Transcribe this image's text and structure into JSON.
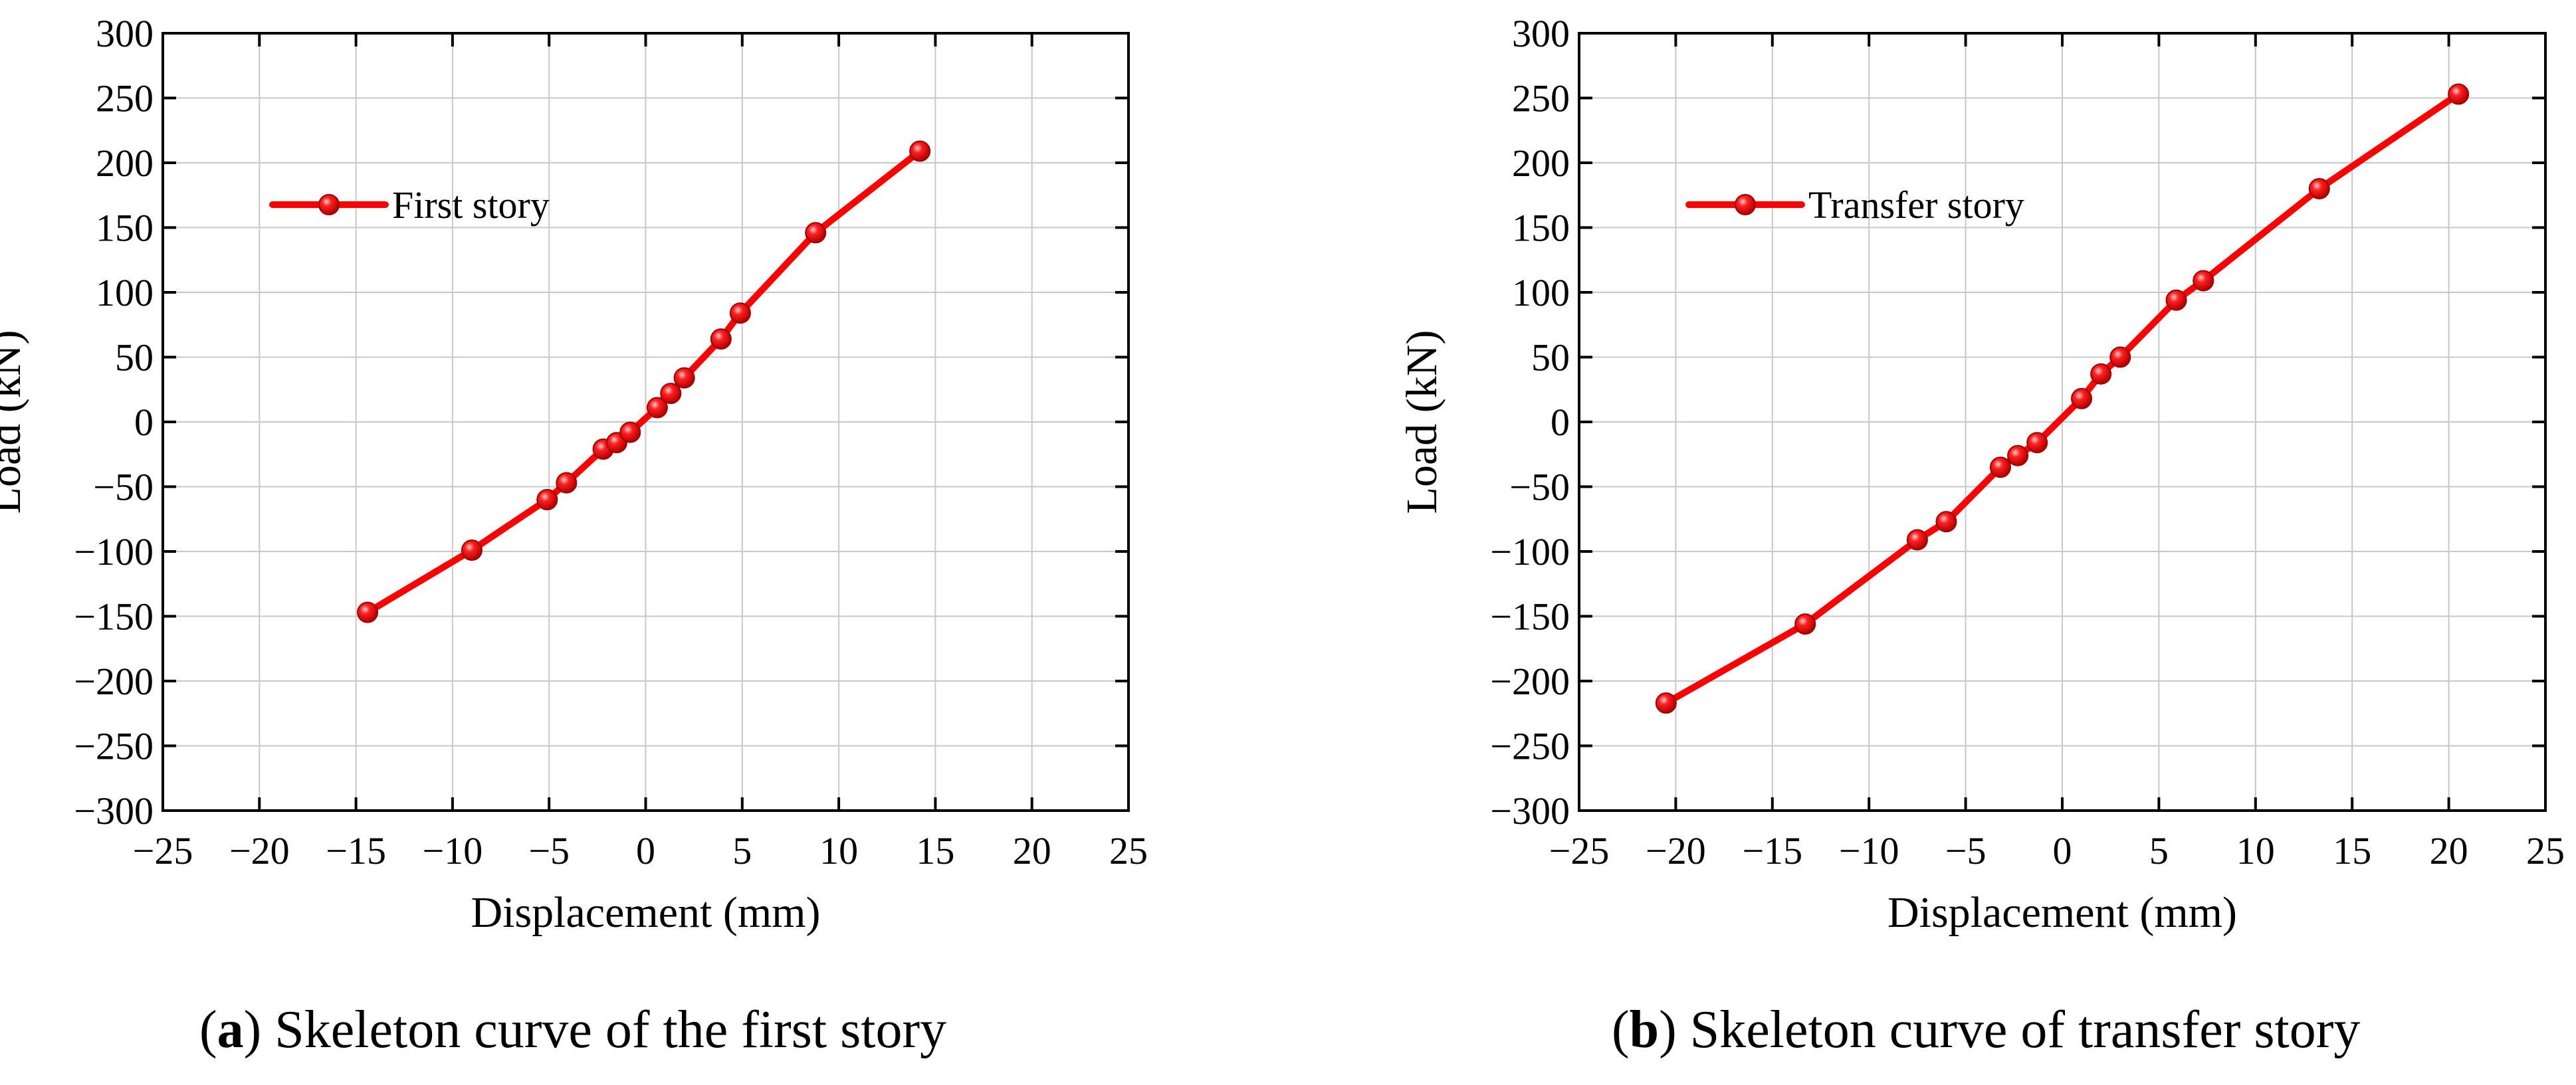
{
  "chart_data": [
    {
      "type": "line",
      "caption": {
        "letter": "a",
        "text": "Skeleton curve of the first story"
      },
      "xlabel": "Displacement (mm)",
      "ylabel": "Load (kN)",
      "xlim": [
        -25,
        25
      ],
      "ylim": [
        -300,
        300
      ],
      "xticks": [
        -25,
        -20,
        -15,
        -10,
        -5,
        0,
        5,
        10,
        15,
        20,
        25
      ],
      "yticks": [
        300,
        250,
        200,
        150,
        100,
        50,
        0,
        -50,
        -100,
        -150,
        -200,
        -250,
        -300
      ],
      "grid": true,
      "legend_position": "top-left",
      "series": [
        {
          "name": "First story",
          "color": "#ff0000",
          "marker": "circle",
          "x": [
            -14.4,
            -9.0,
            -5.1,
            -4.1,
            -2.2,
            -1.5,
            -0.8,
            0.6,
            1.3,
            2.0,
            3.9,
            4.9,
            8.8,
            14.2
          ],
          "y": [
            -147,
            -99,
            -60,
            -47,
            -21,
            -16,
            -8,
            11,
            22,
            34,
            64,
            84,
            146,
            209
          ]
        }
      ]
    },
    {
      "type": "line",
      "caption": {
        "letter": "b",
        "text": "Skeleton curve of transfer story"
      },
      "xlabel": "Displacement (mm)",
      "ylabel": "Load (kN)",
      "xlim": [
        -25,
        25
      ],
      "ylim": [
        -300,
        300
      ],
      "xticks": [
        -25,
        -20,
        -15,
        -10,
        -5,
        0,
        5,
        10,
        15,
        20,
        25
      ],
      "yticks": [
        300,
        250,
        200,
        150,
        100,
        50,
        0,
        -50,
        -100,
        -150,
        -200,
        -250,
        -300
      ],
      "grid": true,
      "legend_position": "top-left",
      "series": [
        {
          "name": "Transfer story",
          "color": "#ff0000",
          "marker": "circle",
          "x": [
            -20.5,
            -13.3,
            -7.5,
            -6.0,
            -3.2,
            -2.3,
            -1.3,
            1.0,
            2.0,
            3.0,
            5.9,
            7.3,
            13.3,
            20.5
          ],
          "y": [
            -217,
            -156,
            -91,
            -77,
            -35,
            -26,
            -16,
            18,
            37,
            50,
            94,
            109,
            180,
            253
          ]
        }
      ]
    }
  ]
}
